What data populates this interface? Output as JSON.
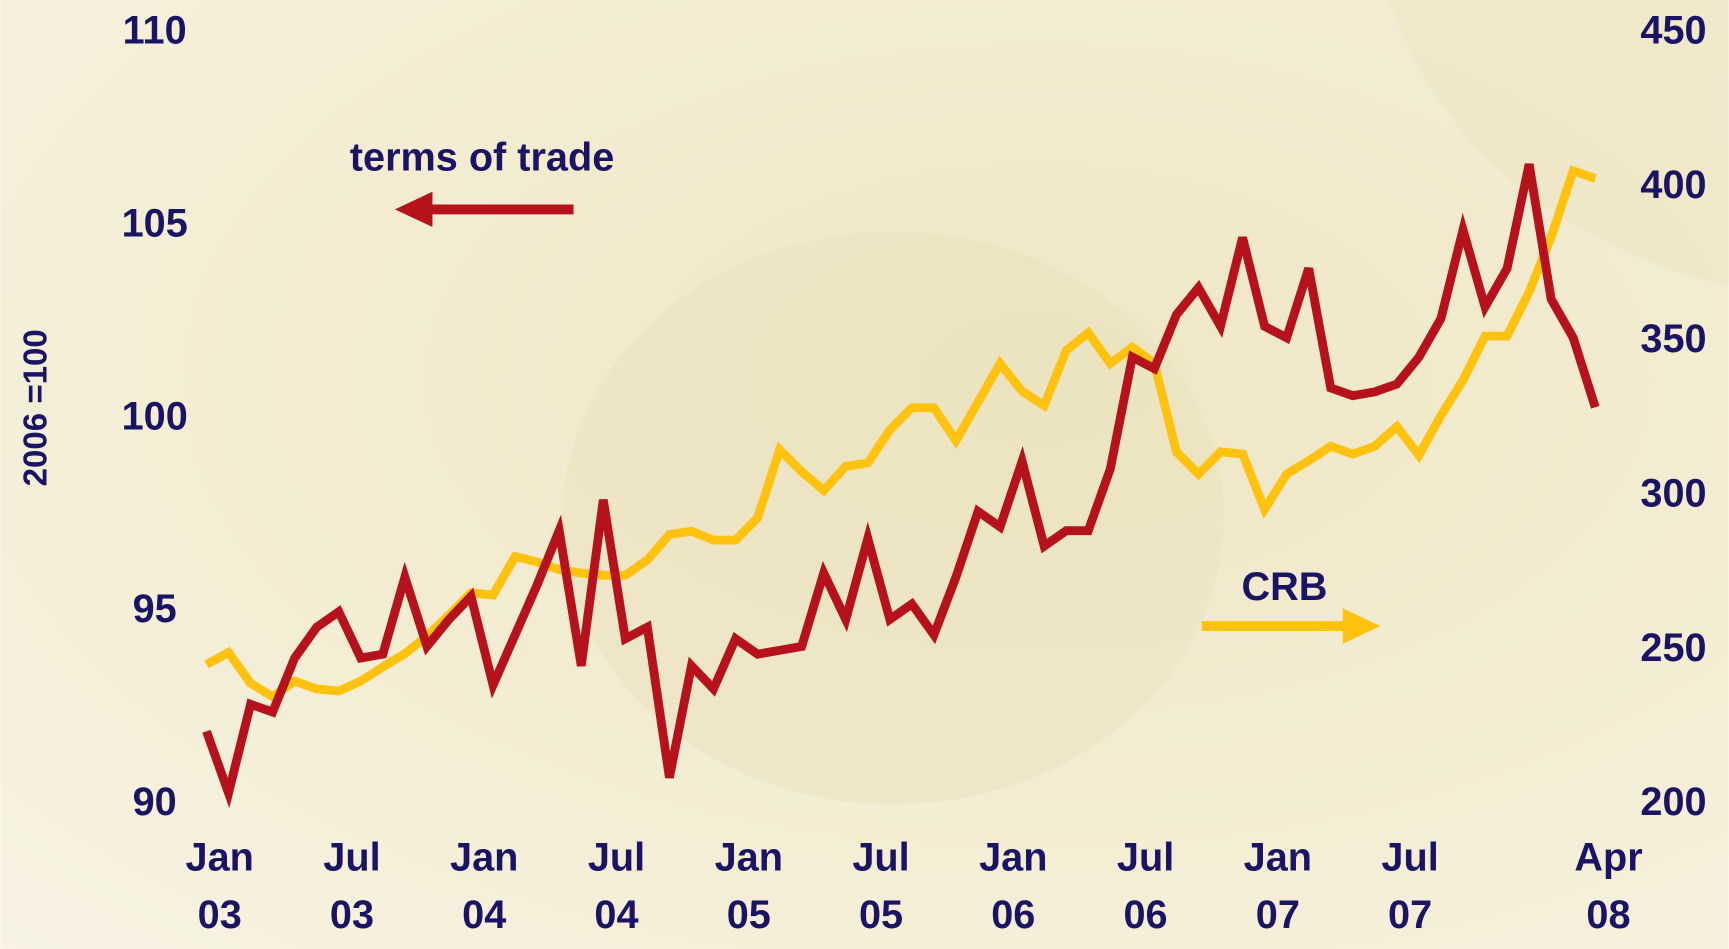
{
  "chart_data": {
    "type": "line",
    "y_label": "2006 =100",
    "annotations": [
      "terms of trade",
      "CRB"
    ],
    "categories": [
      "Jan 03",
      null,
      null,
      null,
      null,
      null,
      "Jul 03",
      null,
      null,
      null,
      null,
      null,
      "Jan 04",
      null,
      null,
      null,
      null,
      null,
      "Jul 04",
      null,
      null,
      null,
      null,
      null,
      "Jan 05",
      null,
      null,
      null,
      null,
      null,
      "Jul 05",
      null,
      null,
      null,
      null,
      null,
      "Jan 06",
      null,
      null,
      null,
      null,
      null,
      "Jul 06",
      null,
      null,
      null,
      null,
      null,
      "Jan 07",
      null,
      null,
      null,
      null,
      null,
      "Jul 07",
      null,
      null,
      null,
      null,
      null,
      null,
      null,
      null,
      "Apr 08"
    ],
    "series": [
      {
        "name": "terms of trade",
        "color": "#b5121b",
        "axis": "y",
        "values": [
          91.9,
          90.3,
          92.6,
          92.4,
          93.8,
          94.6,
          95.0,
          93.8,
          93.9,
          95.9,
          94.1,
          94.8,
          95.4,
          93.1,
          94.4,
          95.7,
          97.1,
          93.6,
          97.9,
          94.3,
          94.6,
          90.7,
          93.6,
          93.0,
          94.3,
          93.9,
          94.0,
          94.1,
          96.0,
          94.8,
          96.9,
          94.8,
          95.2,
          94.4,
          95.9,
          97.6,
          97.2,
          98.9,
          96.7,
          97.1,
          97.1,
          98.7,
          101.6,
          101.3,
          102.7,
          103.4,
          102.4,
          104.7,
          102.4,
          102.1,
          103.9,
          100.8,
          100.6,
          100.7,
          100.9,
          101.6,
          102.6,
          104.9,
          102.9,
          103.9,
          106.6,
          103.1,
          102.1,
          100.3
        ]
      },
      {
        "name": "CRB",
        "color": "#ffc20e",
        "axis": "y2",
        "values": [
          245.4,
          249.3,
          239.3,
          235.0,
          240.0,
          237.5,
          236.8,
          240.0,
          244.6,
          248.9,
          254.6,
          261.4,
          268.6,
          267.9,
          280.4,
          278.6,
          276.1,
          275.0,
          274.3,
          274.3,
          279.3,
          287.5,
          288.6,
          285.7,
          285.7,
          292.9,
          315.0,
          307.9,
          301.8,
          309.6,
          310.7,
          321.4,
          328.6,
          328.6,
          317.9,
          330.4,
          342.9,
          333.9,
          329.3,
          347.1,
          352.9,
          342.9,
          348.2,
          342.9,
          314.3,
          307.1,
          314.3,
          313.6,
          295.7,
          307.1,
          311.4,
          316.1,
          313.6,
          316.1,
          322.5,
          313.2,
          326.1,
          337.5,
          351.8,
          351.8,
          366.1,
          383.9,
          405.4,
          402.9
        ]
      }
    ],
    "ylim": [
      90,
      110
    ],
    "yticks": [
      90,
      95,
      100,
      105,
      110
    ],
    "y2lim": [
      200,
      450
    ],
    "y2ticks": [
      200,
      250,
      300,
      350,
      400,
      450
    ],
    "grid": false
  }
}
